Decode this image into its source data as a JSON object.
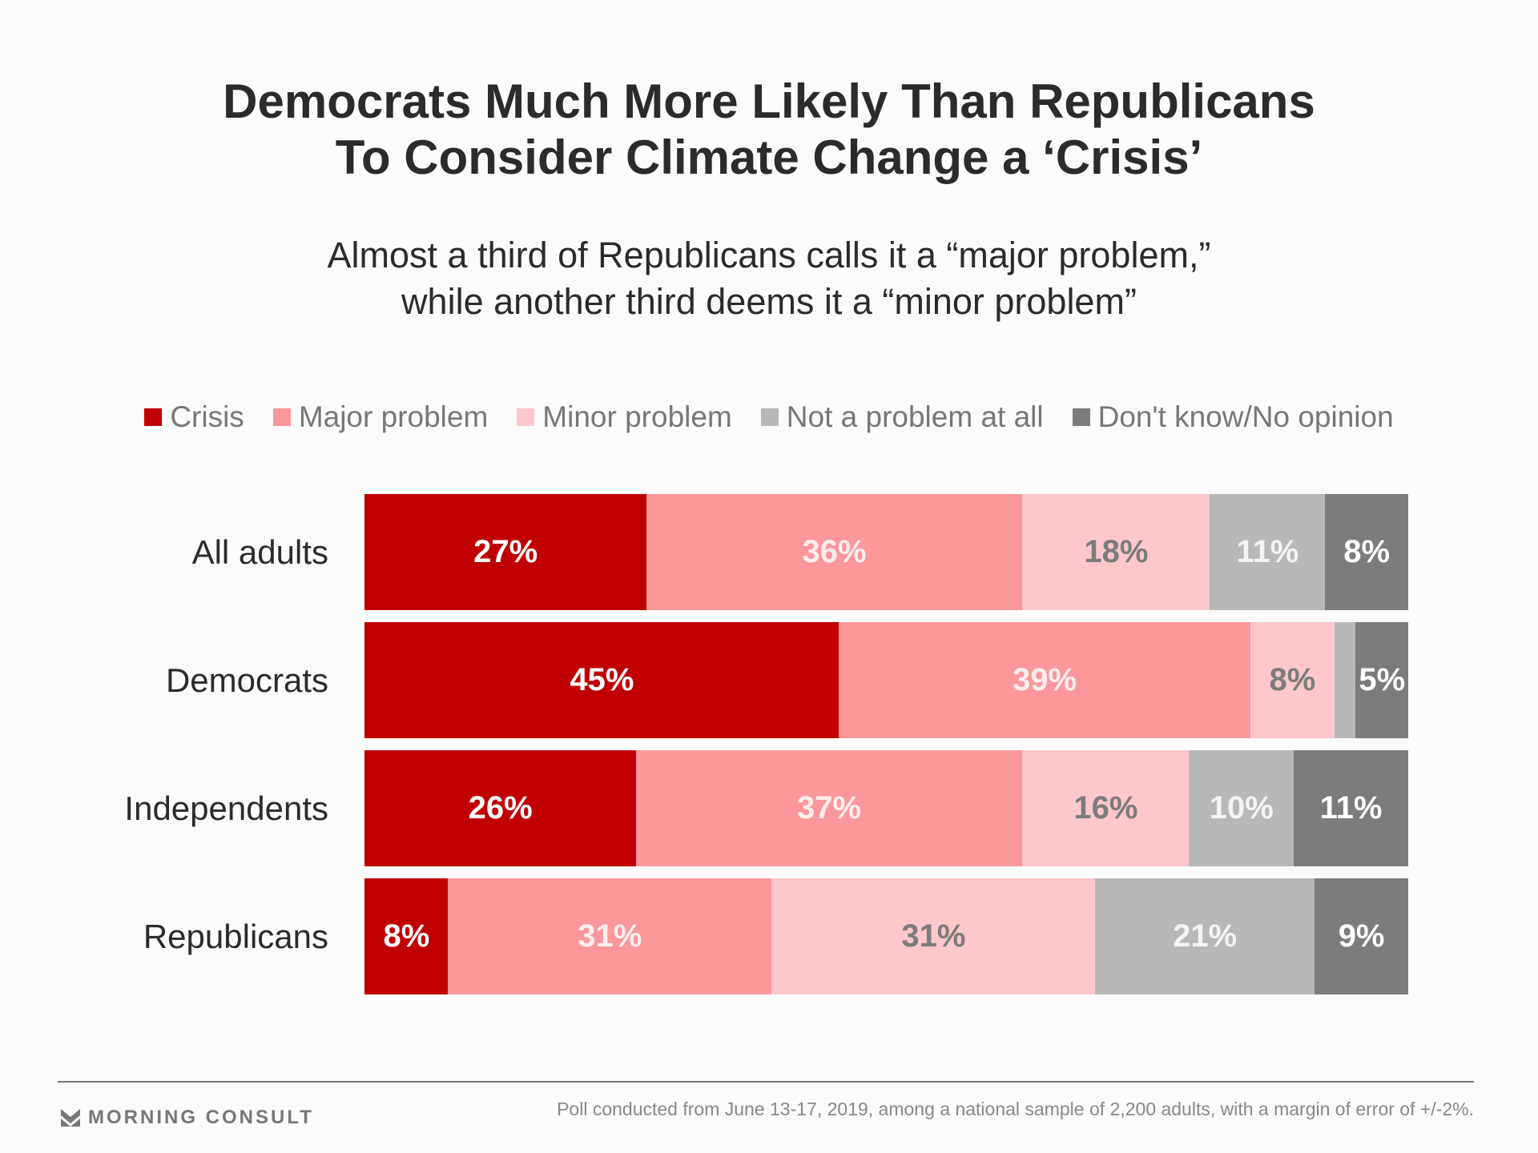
{
  "chart_data": {
    "type": "bar",
    "stacked": true,
    "orientation": "horizontal",
    "title_lines": [
      "Democrats Much More Likely Than Republicans",
      "To Consider Climate Change a ‘Crisis’"
    ],
    "subtitle_lines": [
      "Almost a third of Republicans calls it a “major problem,”",
      "while another third deems it a “minor problem”"
    ],
    "legend_position": "top",
    "categories": [
      "All adults",
      "Democrats",
      "Independents",
      "Republicans"
    ],
    "series": [
      {
        "name": "Crisis",
        "color": "#c00000",
        "label_color": "#ffffff",
        "values": [
          27,
          45,
          26,
          8
        ]
      },
      {
        "name": "Major problem",
        "color": "#fc979b",
        "label_color": "#fdeeee",
        "values": [
          36,
          39,
          37,
          31
        ]
      },
      {
        "name": "Minor problem",
        "color": "#fec7cb",
        "label_color": "#7c7c7c",
        "values": [
          18,
          8,
          16,
          31
        ]
      },
      {
        "name": "Not a problem at all",
        "color": "#b8b8b8",
        "label_color": "#f4f4f4",
        "values": [
          11,
          2,
          10,
          21
        ]
      },
      {
        "name": "Don't know/No opinion",
        "color": "#7c7c7c",
        "label_color": "#ffffff",
        "values": [
          8,
          5,
          11,
          9
        ]
      }
    ],
    "unlabeled": [
      [
        1,
        3
      ]
    ],
    "value_suffix": "%"
  },
  "footer": {
    "brand": "MORNING CONSULT",
    "note": "Poll conducted from June 13-17, 2019, among a national sample of 2,200 adults, with a margin of error of +/-2%."
  }
}
